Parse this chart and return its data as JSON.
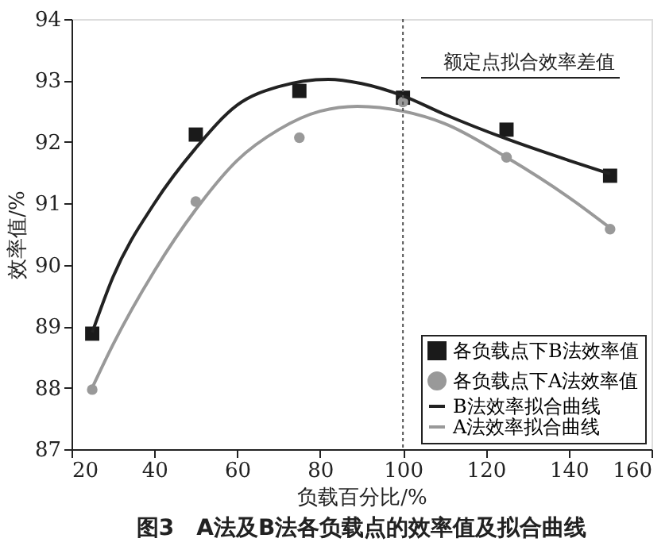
{
  "chart_data": {
    "type": "scatter",
    "title": "图3　A法及B法各负载点的效率值及拟合曲线",
    "xlabel": "负载百分比/%",
    "ylabel": "效率值/%",
    "xlim": [
      20,
      160
    ],
    "xticks": [
      20,
      40,
      60,
      80,
      100,
      120,
      140,
      160
    ],
    "ylim": [
      87,
      94
    ],
    "yticks": [
      87,
      88,
      89,
      90,
      91,
      92,
      93,
      94
    ],
    "grid": false,
    "legend": "bottom right",
    "series": [
      {
        "name": "各负载点下B法效率值",
        "marker": "square",
        "color": "#1a1a1a",
        "x": [
          25,
          50,
          75,
          100,
          125,
          150
        ],
        "values": [
          88.88,
          92.12,
          92.83,
          92.72,
          92.2,
          91.45
        ]
      },
      {
        "name": "各负载点下A法效率值",
        "marker": "circle",
        "color": "#999999",
        "x": [
          25,
          50,
          75,
          100,
          125,
          150
        ],
        "values": [
          87.97,
          91.03,
          92.07,
          92.65,
          91.75,
          90.58
        ]
      },
      {
        "name": "B法效率拟合曲线",
        "type": "line",
        "color": "#222222",
        "x": [
          25,
          30,
          40,
          50,
          60,
          70,
          82,
          90,
          100,
          110,
          125,
          140,
          150
        ],
        "values": [
          88.9,
          89.8,
          91.0,
          91.9,
          92.6,
          92.9,
          93.02,
          92.95,
          92.75,
          92.45,
          92.05,
          91.7,
          91.48
        ]
      },
      {
        "name": "A法效率拟合曲线",
        "type": "line",
        "color": "#999999",
        "x": [
          25,
          30,
          40,
          50,
          60,
          70,
          80,
          89,
          100,
          110,
          125,
          140,
          150
        ],
        "values": [
          88.0,
          88.7,
          89.9,
          90.9,
          91.7,
          92.2,
          92.5,
          92.58,
          92.5,
          92.3,
          91.75,
          91.1,
          90.6
        ]
      }
    ],
    "ref_lines": [
      {
        "axis": "x",
        "value": 100,
        "line_style": "dotted",
        "color": "#555555"
      }
    ],
    "annotations": [
      "额定点拟合效率差值"
    ]
  }
}
